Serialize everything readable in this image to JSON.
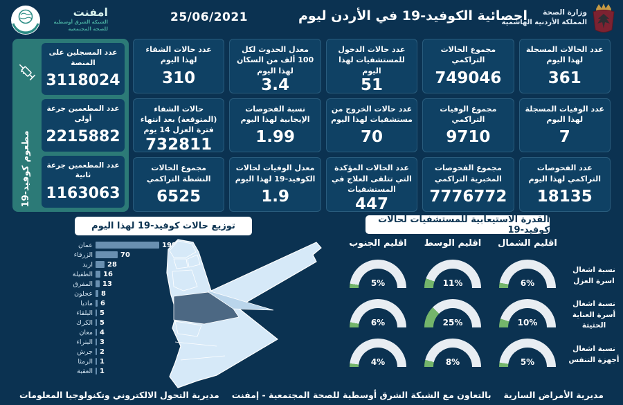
{
  "header": {
    "title": "احصائية الكوفيد-19 في الأردن ليوم",
    "date": "25/06/2021",
    "org_name": "امفنت",
    "org_sub1": "الشبكة الشرق أوسطية",
    "org_sub2": "للصحة المجتمعية",
    "ministry_line1": "وزارة الصحة",
    "ministry_line2": "المملكة الأردنية الهاشمية"
  },
  "vaccine_panel": {
    "vertical_label": "مطعوم كوفيد-19",
    "cards": [
      {
        "label": "عدد المسجلين على المنصة",
        "value": "3118024"
      },
      {
        "label": "عدد المطعمين جرعة أولى",
        "value": "2215882"
      },
      {
        "label": "عدد المطعمين جرعة ثانية",
        "value": "1163063"
      }
    ]
  },
  "stat_columns": [
    {
      "cards": [
        {
          "label": "عدد الحالات المسجلة لهذا اليوم",
          "value": "361"
        },
        {
          "label": "عدد الوفيات المسجلة لهذا اليوم",
          "value": "7"
        },
        {
          "label": "عدد الفحوصات التراكمي لهذا اليوم",
          "value": "18135"
        }
      ]
    },
    {
      "cards": [
        {
          "label": "مجموع الحالات التراكمي",
          "value": "749046"
        },
        {
          "label": "مجموع الوفيات التراكمي",
          "value": "9710"
        },
        {
          "label": "مجموع الفحوصات المخبرية التراكمي",
          "value": "7776772"
        }
      ]
    },
    {
      "cards": [
        {
          "label": "عدد حالات الدخول للمستشفيات لهذا اليوم",
          "value": "51"
        },
        {
          "label": "عدد حالات الخروج من مستشفيات لهذا اليوم",
          "value": "70"
        },
        {
          "label": "عدد الحالات المؤكدة التي تتلقى العلاج في المستشفيات",
          "value": "447"
        }
      ]
    },
    {
      "cards": [
        {
          "label": "معدل الحدوث لكل 100 ألف من السكان لهذا اليوم",
          "value": "3.4"
        },
        {
          "label": "نسبة الفحوصات الإيجابية لهذا اليوم",
          "value": "1.99"
        },
        {
          "label": "معدل الوفيات لحالات الكوفيد-19 لهذا اليوم",
          "value": "1.9"
        }
      ]
    },
    {
      "cards": [
        {
          "label": "عدد حالات الشفاء لهذا اليوم",
          "value": "310"
        },
        {
          "label": "حالات الشفاء (المتوقعة) بعد انتهاء فترة العزل 14 يوم",
          "value": "732811"
        },
        {
          "label": "مجموع الحالات النشطة التراكمي",
          "value": "6525"
        }
      ]
    }
  ],
  "chart_data": [
    {
      "type": "bar",
      "title": "توزيع حالات كوفيد-19 لهذا اليوم",
      "orientation": "horizontal",
      "categories": [
        "عمان",
        "الزرقاء",
        "اربد",
        "الطفيلة",
        "المفرق",
        "عجلون",
        "ماديا",
        "البلقاء",
        "الكرك",
        "معان",
        "البتراء",
        "جرش",
        "الرمثا",
        "العقبة"
      ],
      "values": [
        199,
        70,
        28,
        16,
        13,
        8,
        6,
        5,
        5,
        4,
        3,
        2,
        1,
        1
      ],
      "xlim": [
        0,
        199
      ],
      "bar_color": "#6990b1",
      "legend": "none",
      "grid": false
    },
    {
      "type": "gauge-grid",
      "title": "القدرة الاستيعابية للمستشفيات لحالات كوفيد-19",
      "columns": [
        "اقليم الجنوب",
        "اقليم الوسط",
        "اقليم الشمال"
      ],
      "rows": [
        "نسبة اشغال اسرة العزل",
        "نسبة اشغال أسرة العناية الحثيثة",
        "نسبة اشغال أجهزة التنفس"
      ],
      "values_pct": [
        [
          5,
          11,
          6
        ],
        [
          6,
          25,
          10
        ],
        [
          4,
          8,
          5
        ]
      ],
      "unit": "%",
      "green": "#74b56b",
      "track": "#e8edf2"
    }
  ],
  "footer": {
    "left": "مديرية التحول الالكتروني وتكنولوجيا المعلومات",
    "center": "بالتعاون مع الشبكة الشرق أوسطية للصحة المجتمعية - إمفنت",
    "right": "مديرية الأمراض السارية"
  },
  "icons": {
    "syringe": "syringe-icon",
    "org_logo": "emphnet-globe-logo",
    "emblem": "jordan-coat-of-arms"
  },
  "colors": {
    "background": "#0b3251",
    "card": "#0f4164",
    "sidebar_teal": "#2c7a77",
    "bar": "#6990b1",
    "gauge_green": "#74b56b",
    "gauge_track": "#e8edf2",
    "map_light": "#d6e9f8",
    "map_medium": "#bad5eb",
    "map_dark": "#4c6883",
    "banner_text": "#0c3351"
  }
}
